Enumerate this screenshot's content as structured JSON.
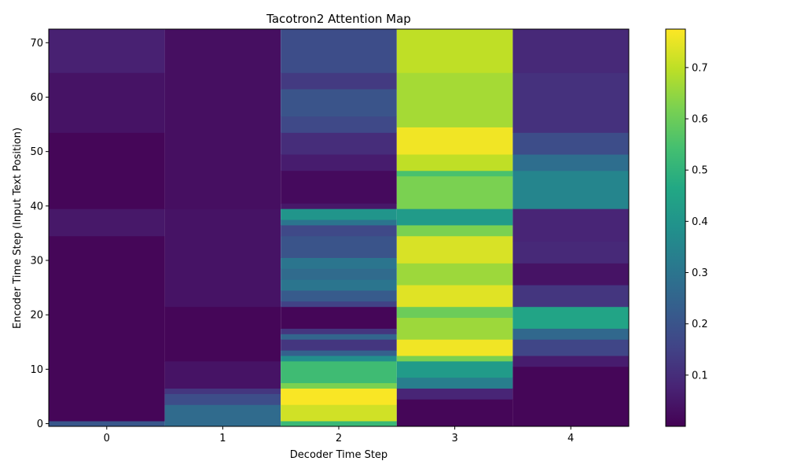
{
  "chart_data": {
    "type": "heatmap",
    "title": "Tacotron2 Attention Map",
    "xlabel": "Decoder Time Step",
    "ylabel": "Encoder Time Step (Input Text Position)",
    "x_ticks": [
      "0",
      "1",
      "2",
      "3",
      "4"
    ],
    "y_ticks": [
      "0",
      "10",
      "20",
      "30",
      "40",
      "50",
      "60",
      "70"
    ],
    "colorbar_ticks": [
      "0.1",
      "0.2",
      "0.3",
      "0.4",
      "0.5",
      "0.6",
      "0.7"
    ],
    "colormap": "viridis",
    "vmin": 0.0,
    "vmax": 0.775,
    "ylim": [
      -0.5,
      72.5
    ],
    "xlim": [
      -0.5,
      4.5
    ],
    "columns": [
      {
        "decoder_step": 0,
        "segments": [
          {
            "from": 0,
            "to": 0,
            "value": 0.21
          },
          {
            "from": 1,
            "to": 34,
            "value": 0.01
          },
          {
            "from": 35,
            "to": 39,
            "value": 0.05
          },
          {
            "from": 40,
            "to": 53,
            "value": 0.01
          },
          {
            "from": 54,
            "to": 64,
            "value": 0.04
          },
          {
            "from": 65,
            "to": 72,
            "value": 0.07
          }
        ]
      },
      {
        "decoder_step": 1,
        "segments": [
          {
            "from": 0,
            "to": 3,
            "value": 0.27
          },
          {
            "from": 4,
            "to": 5,
            "value": 0.18
          },
          {
            "from": 6,
            "to": 6,
            "value": 0.12
          },
          {
            "from": 7,
            "to": 11,
            "value": 0.04
          },
          {
            "from": 12,
            "to": 21,
            "value": 0.01
          },
          {
            "from": 22,
            "to": 39,
            "value": 0.04
          },
          {
            "from": 40,
            "to": 72,
            "value": 0.03
          }
        ]
      },
      {
        "decoder_step": 2,
        "segments": [
          {
            "from": 0,
            "to": 0,
            "value": 0.52
          },
          {
            "from": 1,
            "to": 3,
            "value": 0.72
          },
          {
            "from": 4,
            "to": 6,
            "value": 0.77
          },
          {
            "from": 7,
            "to": 7,
            "value": 0.62
          },
          {
            "from": 8,
            "to": 11,
            "value": 0.53
          },
          {
            "from": 12,
            "to": 12,
            "value": 0.38
          },
          {
            "from": 13,
            "to": 13,
            "value": 0.24
          },
          {
            "from": 14,
            "to": 15,
            "value": 0.12
          },
          {
            "from": 16,
            "to": 16,
            "value": 0.25
          },
          {
            "from": 17,
            "to": 17,
            "value": 0.12
          },
          {
            "from": 18,
            "to": 21,
            "value": 0.01
          },
          {
            "from": 22,
            "to": 22,
            "value": 0.15
          },
          {
            "from": 23,
            "to": 24,
            "value": 0.22
          },
          {
            "from": 25,
            "to": 26,
            "value": 0.3
          },
          {
            "from": 27,
            "to": 28,
            "value": 0.27
          },
          {
            "from": 29,
            "to": 30,
            "value": 0.3
          },
          {
            "from": 31,
            "to": 34,
            "value": 0.2
          },
          {
            "from": 35,
            "to": 36,
            "value": 0.17
          },
          {
            "from": 37,
            "to": 37,
            "value": 0.3
          },
          {
            "from": 38,
            "to": 39,
            "value": 0.4
          },
          {
            "from": 40,
            "to": 40,
            "value": 0.05
          },
          {
            "from": 41,
            "to": 46,
            "value": 0.02
          },
          {
            "from": 47,
            "to": 49,
            "value": 0.06
          },
          {
            "from": 50,
            "to": 53,
            "value": 0.1
          },
          {
            "from": 54,
            "to": 56,
            "value": 0.17
          },
          {
            "from": 57,
            "to": 61,
            "value": 0.2
          },
          {
            "from": 62,
            "to": 64,
            "value": 0.13
          },
          {
            "from": 65,
            "to": 72,
            "value": 0.18
          }
        ]
      },
      {
        "decoder_step": 3,
        "segments": [
          {
            "from": 0,
            "to": 4,
            "value": 0.01
          },
          {
            "from": 5,
            "to": 6,
            "value": 0.08
          },
          {
            "from": 7,
            "to": 8,
            "value": 0.33
          },
          {
            "from": 9,
            "to": 11,
            "value": 0.42
          },
          {
            "from": 12,
            "to": 12,
            "value": 0.62
          },
          {
            "from": 13,
            "to": 15,
            "value": 0.76
          },
          {
            "from": 16,
            "to": 19,
            "value": 0.66
          },
          {
            "from": 20,
            "to": 21,
            "value": 0.6
          },
          {
            "from": 22,
            "to": 25,
            "value": 0.74
          },
          {
            "from": 26,
            "to": 29,
            "value": 0.66
          },
          {
            "from": 30,
            "to": 34,
            "value": 0.73
          },
          {
            "from": 35,
            "to": 36,
            "value": 0.62
          },
          {
            "from": 37,
            "to": 39,
            "value": 0.42
          },
          {
            "from": 40,
            "to": 45,
            "value": 0.62
          },
          {
            "from": 46,
            "to": 46,
            "value": 0.55
          },
          {
            "from": 47,
            "to": 49,
            "value": 0.7
          },
          {
            "from": 50,
            "to": 54,
            "value": 0.76
          },
          {
            "from": 55,
            "to": 64,
            "value": 0.67
          },
          {
            "from": 65,
            "to": 72,
            "value": 0.7
          }
        ]
      },
      {
        "decoder_step": 4,
        "segments": [
          {
            "from": 0,
            "to": 10,
            "value": 0.01
          },
          {
            "from": 11,
            "to": 12,
            "value": 0.06
          },
          {
            "from": 13,
            "to": 15,
            "value": 0.16
          },
          {
            "from": 16,
            "to": 17,
            "value": 0.26
          },
          {
            "from": 18,
            "to": 21,
            "value": 0.45
          },
          {
            "from": 22,
            "to": 25,
            "value": 0.12
          },
          {
            "from": 26,
            "to": 29,
            "value": 0.04
          },
          {
            "from": 30,
            "to": 33,
            "value": 0.09
          },
          {
            "from": 34,
            "to": 39,
            "value": 0.08
          },
          {
            "from": 40,
            "to": 46,
            "value": 0.35
          },
          {
            "from": 47,
            "to": 49,
            "value": 0.28
          },
          {
            "from": 50,
            "to": 53,
            "value": 0.18
          },
          {
            "from": 54,
            "to": 64,
            "value": 0.11
          },
          {
            "from": 65,
            "to": 72,
            "value": 0.09
          }
        ]
      }
    ]
  }
}
